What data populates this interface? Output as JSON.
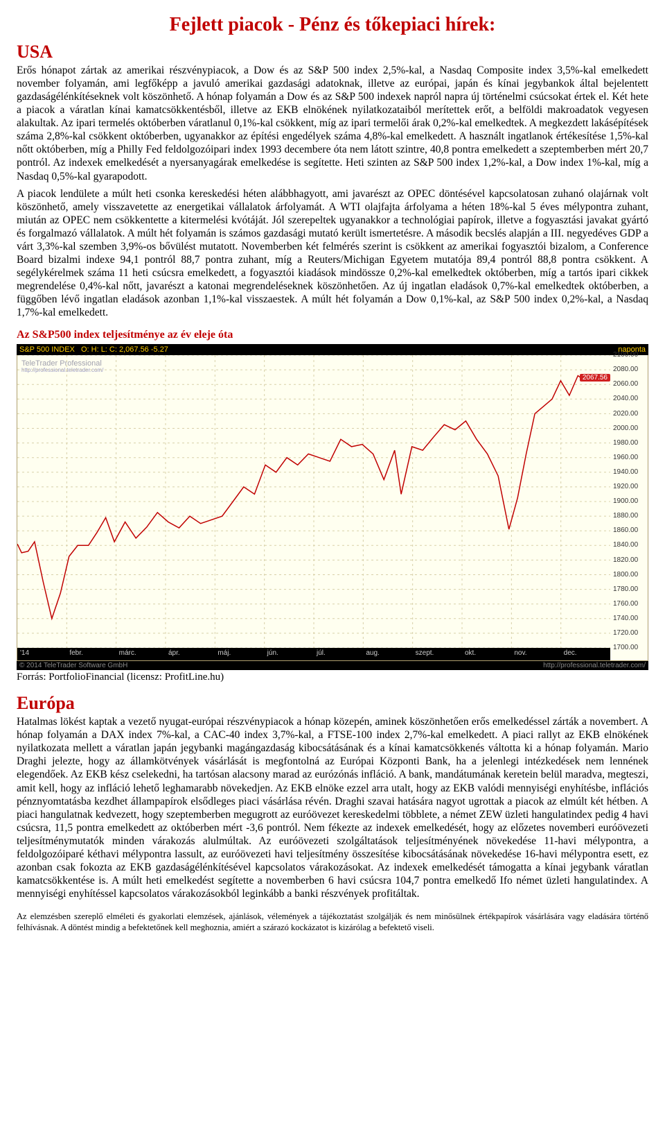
{
  "title": "Fejlett piacok - Pénz és tőkepiaci hírek:",
  "usa": {
    "heading": "USA",
    "para1": "Erős hónapot zártak az amerikai részvénypiacok, a Dow és az S&P 500 index 2,5%-kal, a Nasdaq Composite index 3,5%-kal emelkedett november folyamán, ami legfőképp a javuló amerikai gazdasági adatoknak, illetve az európai, japán és kínai jegybankok által bejelentett gazdaságélénkítéseknek volt köszönhető. A hónap folyamán a Dow és az S&P 500 indexek napról napra új történelmi csúcsokat értek el. Két hete a piacok a váratlan kínai kamatcsökkentésből, illetve az EKB elnökének nyilatkozataiból merítettek erőt, a belföldi makroadatok vegyesen alakultak. Az ipari termelés októberben váratlanul 0,1%-kal csökkent, míg az ipari termelői árak 0,2%-kal emelkedtek. A megkezdett lakásépítések száma 2,8%-kal csökkent októberben, ugyanakkor az építési engedélyek száma 4,8%-kal emelkedett. A használt ingatlanok értékesítése 1,5%-kal nőtt októberben, míg a Philly Fed feldolgozóipari index 1993 decembere óta nem látott szintre, 40,8 pontra emelkedett a szeptemberben mért 20,7 pontról. Az indexek emelkedését a nyersanyagárak emelkedése is segítette. Heti szinten az S&P 500 index 1,2%-kal, a Dow index 1%-kal, míg a Nasdaq 0,5%-kal gyarapodott.",
    "para2": "A piacok lendülete a múlt heti csonka kereskedési héten alábbhagyott, ami javarészt az OPEC döntésével kapcsolatosan zuhanó olajárnak volt köszönhető, amely visszavetette az energetikai vállalatok árfolyamát. A WTI olajfajta árfolyama a héten 18%-kal 5 éves mélypontra zuhant, miután az OPEC nem csökkentette a kitermelési kvótáját. Jól szerepeltek ugyanakkor a technológiai papírok, illetve a fogyasztási javakat gyártó és forgalmazó vállalatok. A múlt hét folyamán is számos gazdasági mutató került ismertetésre. A második becslés alapján a III. negyedéves GDP a várt 3,3%-kal szemben 3,9%-os bővülést mutatott. Novemberben két felmérés szerint is csökkent az amerikai fogyasztói bizalom, a Conference Board bizalmi indexe 94,1 pontról 88,7 pontra zuhant, míg a Reuters/Michigan Egyetem mutatója 89,4 pontról 88,8 pontra csökkent. A segélykérelmek száma 11 heti csúcsra emelkedett, a fogyasztói kiadások mindössze 0,2%-kal emelkedtek októberben, míg a tartós ipari cikkek megrendelése 0,4%-kal nőtt, javarészt a katonai megrendeléseknek köszönhetően. Az új ingatlan eladások 0,7%-kal emelkedtek októberben, a függőben lévő ingatlan eladások azonban 1,1%-kal visszaestek. A múlt hét folyamán a Dow 0,1%-kal, az S&P 500 index 0,2%-kal, a Nasdaq 1,7%-kal emelkedett."
  },
  "chart": {
    "caption": "Az S&P500 index teljesítménye az év eleje óta",
    "header_left": "S&P 500 INDEX",
    "header_ohlc": "O:   H:   L:   C: 2,067.56 -5.27",
    "header_right": "naponta",
    "watermark_main": "TeleTrader Professional",
    "watermark_sub": "http://professional.teletrader.com/",
    "footer_left": "© 2014 TeleTrader Software GmbH",
    "footer_right": "http://professional.teletrader.com/",
    "source": "Forrás: PortfolioFinancial (licensz: ProfitLine.hu)",
    "ylim": [
      1700,
      2100
    ],
    "ytick_step": 20,
    "last_value": 2067.56,
    "line_color": "#c00000",
    "grid_color": "#d8d0a8",
    "background": "#fffff0",
    "x_labels": [
      "'14",
      "febr.",
      "márc.",
      "ápr.",
      "máj.",
      "jún.",
      "júl.",
      "aug.",
      "szept.",
      "okt.",
      "nov.",
      "dec."
    ],
    "series": [
      [
        0,
        1842
      ],
      [
        2,
        1830
      ],
      [
        5,
        1832
      ],
      [
        8,
        1845
      ],
      [
        12,
        1790
      ],
      [
        16,
        1740
      ],
      [
        20,
        1775
      ],
      [
        24,
        1825
      ],
      [
        28,
        1840
      ],
      [
        33,
        1840
      ],
      [
        37,
        1858
      ],
      [
        41,
        1878
      ],
      [
        45,
        1845
      ],
      [
        50,
        1872
      ],
      [
        55,
        1850
      ],
      [
        60,
        1865
      ],
      [
        65,
        1885
      ],
      [
        70,
        1872
      ],
      [
        75,
        1864
      ],
      [
        80,
        1880
      ],
      [
        85,
        1870
      ],
      [
        90,
        1875
      ],
      [
        95,
        1880
      ],
      [
        100,
        1900
      ],
      [
        105,
        1920
      ],
      [
        110,
        1910
      ],
      [
        115,
        1950
      ],
      [
        120,
        1940
      ],
      [
        125,
        1960
      ],
      [
        130,
        1950
      ],
      [
        135,
        1965
      ],
      [
        140,
        1960
      ],
      [
        145,
        1955
      ],
      [
        150,
        1985
      ],
      [
        155,
        1975
      ],
      [
        160,
        1978
      ],
      [
        165,
        1965
      ],
      [
        170,
        1930
      ],
      [
        175,
        1970
      ],
      [
        178,
        1910
      ],
      [
        183,
        1975
      ],
      [
        188,
        1970
      ],
      [
        193,
        1988
      ],
      [
        198,
        2005
      ],
      [
        203,
        1998
      ],
      [
        208,
        2010
      ],
      [
        213,
        1985
      ],
      [
        218,
        1965
      ],
      [
        223,
        1935
      ],
      [
        228,
        1862
      ],
      [
        232,
        1905
      ],
      [
        236,
        1965
      ],
      [
        240,
        2020
      ],
      [
        244,
        2030
      ],
      [
        248,
        2040
      ],
      [
        252,
        2065
      ],
      [
        256,
        2045
      ],
      [
        260,
        2072
      ],
      [
        262,
        2067.56
      ]
    ],
    "x_domain": [
      0,
      275
    ]
  },
  "europa": {
    "heading": "Európa",
    "para1": "Hatalmas lökést kaptak a vezető nyugat-európai részvénypiacok a hónap közepén, aminek köszönhetően erős emelkedéssel zárták a novembert. A hónap folyamán a DAX index 7%-kal, a CAC-40 index 3,7%-kal, a FTSE-100 index 2,7%-kal emelkedett. A piaci rallyt az EKB elnökének nyilatkozata mellett a váratlan japán jegybanki magángazdaság kibocsátásának és a kínai kamatcsökkenés váltotta ki a hónap folyamán. Mario Draghi jelezte, hogy az államkötvények vásárlását is megfontolná az Európai Központi Bank, ha a jelenlegi intézkedések nem lennének elegendőek. Az EKB kész cselekedni, ha tartósan alacsony marad az eurózónás infláció. A bank, mandátumának keretein belül maradva, megteszi, amit kell, hogy az infláció lehető leghamarabb növekedjen. Az EKB elnöke ezzel arra utalt, hogy az EKB valódi mennyiségi enyhítésbe, inflációs pénznyomtatásba kezdhet állampapírok elsődleges piaci vásárlása révén. Draghi szavai hatására nagyot ugrottak a piacok az elmúlt két hétben. A piaci hangulatnak kedvezett, hogy szeptemberben megugrott az euróövezet kereskedelmi többlete, a német ZEW üzleti hangulatindex pedig 4 havi csúcsra, 11,5 pontra emelkedett az októberben mért -3,6 pontról. Nem fékezte az indexek emelkedését, hogy az előzetes novemberi euróövezeti teljesítménymutatók minden várakozás alulmúltak. Az euróövezeti szolgáltatások teljesítményének növekedése 11-havi mélypontra, a feldolgozóiparé kéthavi mélypontra lassult, az euróövezeti havi teljesítmény összesítése kibocsátásának növekedése 16-havi mélypontra esett, ez azonban csak fokozta az EKB gazdaságélénkítésével kapcsolatos várakozásokat. Az indexek emelkedését támogatta a kínai jegybank váratlan kamatcsökkentése is. A múlt heti emelkedést segítette a novemberben 6 havi csúcsra 104,7 pontra emelkedő Ifo német üzleti hangulatindex. A mennyiségi enyhítéssel kapcsolatos várakozásokból leginkább a banki részvények profitáltak."
  },
  "disclaimer": "Az elemzésben szereplő elméleti és gyakorlati elemzések, ajánlások, vélemények a tájékoztatást szolgálják és nem minősülnek értékpapírok vásárlására vagy eladására történő felhívásnak. A döntést mindig a befektetőnek kell meghoznia, amiért a szárazó kockázatot is kizárólag a befektető viseli."
}
